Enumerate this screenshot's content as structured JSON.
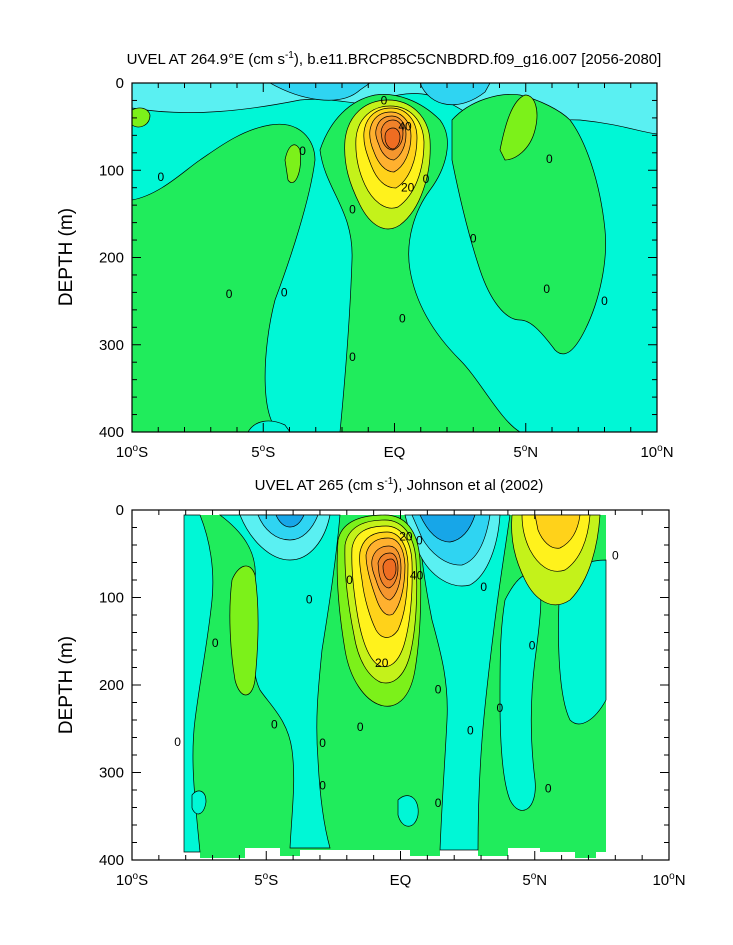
{
  "chart_data": [
    {
      "type": "contour",
      "title_main": "UVEL AT 264.9°E (cm s",
      "title_sup": "-1",
      "title_rest": "), b.e11.BRCP85C5CNBDRD.f09_g16.007 [2056-2080]",
      "ylabel": "DEPTH (m)",
      "xlabel": "",
      "x_ticks": [
        {
          "v": -10,
          "t": "10",
          "deg": "o",
          "h": "S"
        },
        {
          "v": -5,
          "t": "5",
          "deg": "o",
          "h": "S"
        },
        {
          "v": 0,
          "t": "EQ",
          "deg": "",
          "h": ""
        },
        {
          "v": 5,
          "t": "5",
          "deg": "o",
          "h": "N"
        },
        {
          "v": 10,
          "t": "10",
          "deg": "o",
          "h": "N"
        }
      ],
      "y_ticks": [
        0,
        100,
        200,
        300,
        400
      ],
      "xlim": [
        -10,
        10
      ],
      "ylim": [
        0,
        400
      ],
      "contour_labels": [
        {
          "x": -0.4,
          "y": 20,
          "t": "0"
        },
        {
          "x": 0.4,
          "y": 50,
          "t": "40"
        },
        {
          "x": 0.5,
          "y": 120,
          "t": "20"
        },
        {
          "x": 1.2,
          "y": 110,
          "t": "0"
        },
        {
          "x": -3.5,
          "y": 78,
          "t": "0"
        },
        {
          "x": -8.9,
          "y": 108,
          "t": "0"
        },
        {
          "x": -1.6,
          "y": 145,
          "t": "0"
        },
        {
          "x": 3.0,
          "y": 178,
          "t": "0"
        },
        {
          "x": 5.9,
          "y": 87,
          "t": "0"
        },
        {
          "x": -6.3,
          "y": 242,
          "t": "0"
        },
        {
          "x": -4.2,
          "y": 240,
          "t": "0"
        },
        {
          "x": 5.8,
          "y": 236,
          "t": "0"
        },
        {
          "x": 8.0,
          "y": 250,
          "t": "0"
        },
        {
          "x": 0.3,
          "y": 270,
          "t": "0"
        },
        {
          "x": -1.6,
          "y": 314,
          "t": "0"
        }
      ]
    },
    {
      "type": "contour",
      "title_main": "UVEL AT 265 (cm s",
      "title_sup": "-1",
      "title_rest": "), Johnson et al (2002)",
      "ylabel": "DEPTH (m)",
      "xlabel": "",
      "x_ticks": [
        {
          "v": -10,
          "t": "10",
          "deg": "o",
          "h": "S"
        },
        {
          "v": -5,
          "t": "5",
          "deg": "o",
          "h": "S"
        },
        {
          "v": 0,
          "t": "EQ",
          "deg": "",
          "h": ""
        },
        {
          "v": 5,
          "t": "5",
          "deg": "o",
          "h": "N"
        },
        {
          "v": 10,
          "t": "10",
          "deg": "o",
          "h": "N"
        }
      ],
      "y_ticks": [
        0,
        100,
        200,
        300,
        400
      ],
      "xlim": [
        -10,
        10
      ],
      "ylim": [
        0,
        400
      ],
      "contour_labels": [
        {
          "x": 0.2,
          "y": 30,
          "t": "20"
        },
        {
          "x": 0.7,
          "y": 35,
          "t": "0"
        },
        {
          "x": 0.6,
          "y": 75,
          "t": "40"
        },
        {
          "x": -0.7,
          "y": 175,
          "t": "20"
        },
        {
          "x": -1.9,
          "y": 80,
          "t": "0"
        },
        {
          "x": -3.4,
          "y": 102,
          "t": "0"
        },
        {
          "x": -6.9,
          "y": 152,
          "t": "0"
        },
        {
          "x": 3.1,
          "y": 88,
          "t": "0"
        },
        {
          "x": 4.9,
          "y": 155,
          "t": "0"
        },
        {
          "x": 8.0,
          "y": 52,
          "t": "0"
        },
        {
          "x": 1.4,
          "y": 205,
          "t": "0"
        },
        {
          "x": 3.7,
          "y": 226,
          "t": "0"
        },
        {
          "x": 2.6,
          "y": 252,
          "t": "0"
        },
        {
          "x": -4.7,
          "y": 245,
          "t": "0"
        },
        {
          "x": -1.5,
          "y": 248,
          "t": "0"
        },
        {
          "x": -2.9,
          "y": 266,
          "t": "0"
        },
        {
          "x": -8.3,
          "y": 265,
          "t": "0"
        },
        {
          "x": -2.9,
          "y": 315,
          "t": "0"
        },
        {
          "x": 1.4,
          "y": 335,
          "t": "0"
        },
        {
          "x": 5.5,
          "y": 318,
          "t": "0"
        }
      ]
    }
  ],
  "colors": {
    "band_neg_deep": "#17a6e8",
    "band_neg": "#2fd4f2",
    "band_neg_light": "#5af0f2",
    "band_zero_neg": "#00f7d6",
    "band_pos": "#20ec5c",
    "band_pos_mid": "#7cf11a",
    "band_pos_high": "#c4f21a",
    "band_20": "#fff21c",
    "band_30": "#ffd21a",
    "band_40": "#ffb12f",
    "band_50": "#f5962e",
    "band_60": "#f0822a",
    "band_70": "#ee6d22",
    "line": "#000000"
  }
}
